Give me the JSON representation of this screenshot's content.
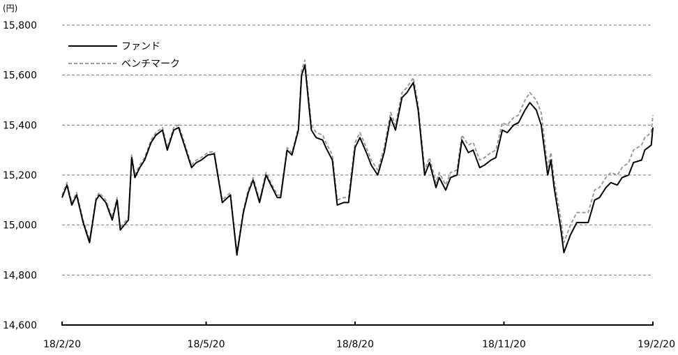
{
  "chart_data": {
    "type": "line",
    "ylabel": "(円)",
    "yticks": [
      14600,
      14800,
      15000,
      15200,
      15400,
      15600,
      15800
    ],
    "ytick_labels": [
      "14,600",
      "14,800",
      "15,000",
      "15,200",
      "15,400",
      "15,600",
      "15,800"
    ],
    "ylim": [
      14600,
      15800
    ],
    "xlim": [
      "2018-02-20",
      "2019-02-20"
    ],
    "xticks": [
      "2018-02-20",
      "2018-05-20",
      "2018-08-20",
      "2018-11-20",
      "2019-02-20"
    ],
    "xtick_labels": [
      "18/2/20",
      "18/5/20",
      "18/8/20",
      "18/11/20",
      "19/2/20"
    ],
    "grid": "horizontal dashed",
    "legend_position": "top-left",
    "series_colors": {
      "fund": "#000000",
      "benchmark": "#999999"
    },
    "series": [
      {
        "name": "ファンド",
        "style": "solid",
        "x": [
          "2018-02-20",
          "2018-02-23",
          "2018-02-26",
          "2018-03-01",
          "2018-03-05",
          "2018-03-09",
          "2018-03-13",
          "2018-03-15",
          "2018-03-19",
          "2018-03-23",
          "2018-03-26",
          "2018-03-28",
          "2018-04-02",
          "2018-04-04",
          "2018-04-06",
          "2018-04-09",
          "2018-04-12",
          "2018-04-16",
          "2018-04-19",
          "2018-04-23",
          "2018-04-26",
          "2018-04-30",
          "2018-05-03",
          "2018-05-07",
          "2018-05-11",
          "2018-05-14",
          "2018-05-17",
          "2018-05-21",
          "2018-05-25",
          "2018-05-30",
          "2018-06-04",
          "2018-06-08",
          "2018-06-12",
          "2018-06-15",
          "2018-06-18",
          "2018-06-22",
          "2018-06-26",
          "2018-06-29",
          "2018-07-03",
          "2018-07-05",
          "2018-07-09",
          "2018-07-12",
          "2018-07-16",
          "2018-07-18",
          "2018-07-20",
          "2018-07-24",
          "2018-07-27",
          "2018-07-31",
          "2018-08-02",
          "2018-08-06",
          "2018-08-09",
          "2018-08-13",
          "2018-08-16",
          "2018-08-20",
          "2018-08-23",
          "2018-08-27",
          "2018-08-30",
          "2018-09-03",
          "2018-09-07",
          "2018-09-11",
          "2018-09-14",
          "2018-09-18",
          "2018-09-21",
          "2018-09-25",
          "2018-09-28",
          "2018-10-02",
          "2018-10-05",
          "2018-10-09",
          "2018-10-11",
          "2018-10-15",
          "2018-10-18",
          "2018-10-22",
          "2018-10-25",
          "2018-10-29",
          "2018-11-01",
          "2018-11-05",
          "2018-11-08",
          "2018-11-12",
          "2018-11-15",
          "2018-11-19",
          "2018-11-22",
          "2018-11-26",
          "2018-11-29",
          "2018-12-03",
          "2018-12-06",
          "2018-12-10",
          "2018-12-13",
          "2018-12-17",
          "2018-12-19",
          "2018-12-21",
          "2018-12-25",
          "2018-12-27",
          "2018-12-31",
          "2019-01-04",
          "2019-01-08",
          "2019-01-11",
          "2019-01-15",
          "2019-01-18",
          "2019-01-22",
          "2019-01-25",
          "2019-01-29",
          "2019-02-01",
          "2019-02-05",
          "2019-02-08",
          "2019-02-13",
          "2019-02-15",
          "2019-02-19",
          "2019-02-20"
        ],
        "values": [
          15110,
          15160,
          15080,
          15120,
          15010,
          14930,
          15100,
          15120,
          15090,
          15020,
          15100,
          14980,
          15020,
          15270,
          15190,
          15230,
          15260,
          15330,
          15360,
          15380,
          15300,
          15380,
          15390,
          15310,
          15230,
          15250,
          15260,
          15280,
          15285,
          15090,
          15120,
          14880,
          15050,
          15130,
          15180,
          15090,
          15200,
          15160,
          15110,
          15110,
          15300,
          15280,
          15380,
          15600,
          15640,
          15380,
          15350,
          15340,
          15310,
          15260,
          15080,
          15090,
          15090,
          15310,
          15350,
          15290,
          15240,
          15200,
          15290,
          15430,
          15380,
          15510,
          15530,
          15570,
          15460,
          15200,
          15250,
          15150,
          15190,
          15140,
          15190,
          15200,
          15340,
          15290,
          15300,
          15230,
          15240,
          15260,
          15270,
          15380,
          15370,
          15400,
          15410,
          15460,
          15490,
          15460,
          15400,
          15200,
          15260,
          15150,
          14990,
          14890,
          14960,
          15010,
          15010,
          15010,
          15100,
          15110,
          15150,
          15170,
          15160,
          15190,
          15200,
          15250,
          15260,
          15300,
          15320,
          15390
        ]
      },
      {
        "name": "ベンチマーク",
        "style": "dashed",
        "x": [
          "2018-02-20",
          "2018-02-23",
          "2018-02-26",
          "2018-03-01",
          "2018-03-05",
          "2018-03-09",
          "2018-03-13",
          "2018-03-15",
          "2018-03-19",
          "2018-03-23",
          "2018-03-26",
          "2018-03-28",
          "2018-04-02",
          "2018-04-04",
          "2018-04-06",
          "2018-04-09",
          "2018-04-12",
          "2018-04-16",
          "2018-04-19",
          "2018-04-23",
          "2018-04-26",
          "2018-04-30",
          "2018-05-03",
          "2018-05-07",
          "2018-05-11",
          "2018-05-14",
          "2018-05-17",
          "2018-05-21",
          "2018-05-25",
          "2018-05-30",
          "2018-06-04",
          "2018-06-08",
          "2018-06-12",
          "2018-06-15",
          "2018-06-18",
          "2018-06-22",
          "2018-06-26",
          "2018-06-29",
          "2018-07-03",
          "2018-07-05",
          "2018-07-09",
          "2018-07-12",
          "2018-07-16",
          "2018-07-18",
          "2018-07-20",
          "2018-07-24",
          "2018-07-27",
          "2018-07-31",
          "2018-08-02",
          "2018-08-06",
          "2018-08-09",
          "2018-08-13",
          "2018-08-16",
          "2018-08-20",
          "2018-08-23",
          "2018-08-27",
          "2018-08-30",
          "2018-09-03",
          "2018-09-07",
          "2018-09-11",
          "2018-09-14",
          "2018-09-18",
          "2018-09-21",
          "2018-09-25",
          "2018-09-28",
          "2018-10-02",
          "2018-10-05",
          "2018-10-09",
          "2018-10-11",
          "2018-10-15",
          "2018-10-18",
          "2018-10-22",
          "2018-10-25",
          "2018-10-29",
          "2018-11-01",
          "2018-11-05",
          "2018-11-08",
          "2018-11-12",
          "2018-11-15",
          "2018-11-19",
          "2018-11-22",
          "2018-11-26",
          "2018-11-29",
          "2018-12-03",
          "2018-12-06",
          "2018-12-10",
          "2018-12-13",
          "2018-12-17",
          "2018-12-19",
          "2018-12-21",
          "2018-12-25",
          "2018-12-27",
          "2018-12-31",
          "2019-01-04",
          "2019-01-08",
          "2019-01-11",
          "2019-01-15",
          "2019-01-18",
          "2019-01-22",
          "2019-01-25",
          "2019-01-29",
          "2019-02-01",
          "2019-02-05",
          "2019-02-08",
          "2019-02-13",
          "2019-02-15",
          "2019-02-19",
          "2019-02-20"
        ],
        "values": [
          15120,
          15170,
          15090,
          15130,
          15020,
          14940,
          15110,
          15130,
          15100,
          15030,
          15110,
          14990,
          15030,
          15280,
          15200,
          15240,
          15270,
          15340,
          15370,
          15390,
          15310,
          15390,
          15400,
          15320,
          15240,
          15260,
          15270,
          15290,
          15295,
          15100,
          15130,
          14890,
          15060,
          15140,
          15190,
          15100,
          15210,
          15170,
          15120,
          15120,
          15310,
          15290,
          15390,
          15620,
          15660,
          15400,
          15370,
          15360,
          15330,
          15280,
          15100,
          15110,
          15110,
          15330,
          15370,
          15310,
          15260,
          15220,
          15310,
          15450,
          15400,
          15530,
          15550,
          15590,
          15480,
          15220,
          15270,
          15170,
          15210,
          15160,
          15210,
          15220,
          15360,
          15320,
          15330,
          15260,
          15270,
          15290,
          15300,
          15410,
          15400,
          15430,
          15440,
          15500,
          15530,
          15500,
          15450,
          15230,
          15290,
          15180,
          15030,
          14930,
          15000,
          15050,
          15050,
          15050,
          15140,
          15150,
          15190,
          15210,
          15200,
          15230,
          15250,
          15300,
          15320,
          15350,
          15370,
          15440
        ]
      }
    ]
  }
}
